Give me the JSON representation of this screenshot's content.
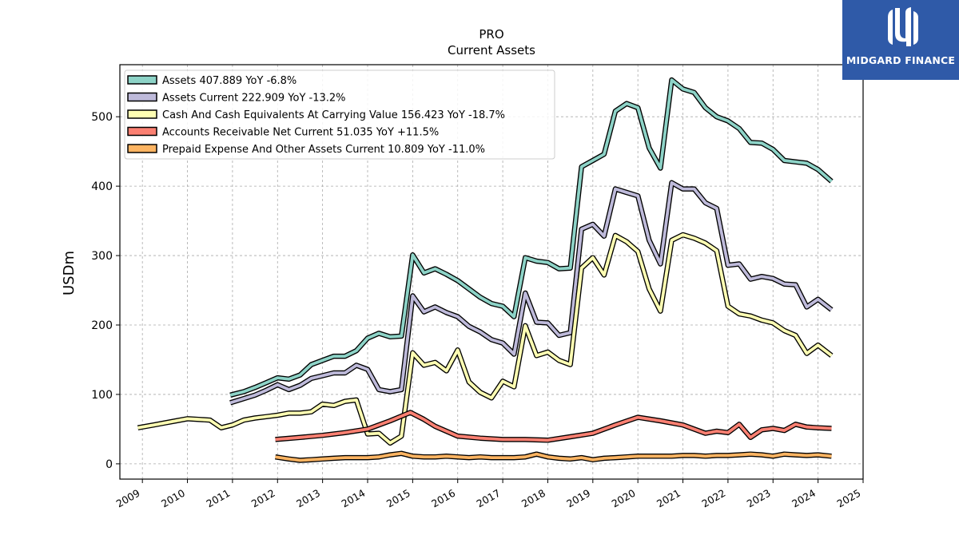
{
  "brand": {
    "name": "MIDGARD FINANCE",
    "background": "#2f5aa8"
  },
  "chart_data": {
    "type": "line",
    "title": "PRO",
    "subtitle": "Current  Assets",
    "xlabel": "",
    "ylabel": "USDm",
    "xlim": [
      2008.5,
      2025.0
    ],
    "ylim": [
      -22,
      575
    ],
    "x_ticks": [
      "2009",
      "2010",
      "2011",
      "2012",
      "2013",
      "2014",
      "2015",
      "2016",
      "2017",
      "2018",
      "2019",
      "2020",
      "2021",
      "2022",
      "2023",
      "2024",
      "2025"
    ],
    "y_ticks": [
      0,
      100,
      200,
      300,
      400,
      500
    ],
    "grid": true,
    "legend_position": "top-left",
    "series": [
      {
        "name": "Assets  407.889 YoY -6.8%",
        "color": "#8dd3c7",
        "points": [
          [
            2010.95,
            99
          ],
          [
            2011.25,
            104
          ],
          [
            2011.5,
            110
          ],
          [
            2011.75,
            117
          ],
          [
            2012.0,
            124
          ],
          [
            2012.25,
            122
          ],
          [
            2012.5,
            128
          ],
          [
            2012.75,
            143
          ],
          [
            2013.0,
            149
          ],
          [
            2013.25,
            155
          ],
          [
            2013.5,
            155
          ],
          [
            2013.75,
            163
          ],
          [
            2014.0,
            181
          ],
          [
            2014.25,
            188
          ],
          [
            2014.5,
            183
          ],
          [
            2014.75,
            184
          ],
          [
            2015.0,
            301
          ],
          [
            2015.25,
            275
          ],
          [
            2015.5,
            281
          ],
          [
            2015.75,
            273
          ],
          [
            2016.0,
            264
          ],
          [
            2016.25,
            252
          ],
          [
            2016.5,
            240
          ],
          [
            2016.75,
            231
          ],
          [
            2017.0,
            227
          ],
          [
            2017.25,
            212
          ],
          [
            2017.5,
            297
          ],
          [
            2017.75,
            292
          ],
          [
            2018.0,
            290
          ],
          [
            2018.25,
            281
          ],
          [
            2018.5,
            282
          ],
          [
            2018.75,
            428
          ],
          [
            2019.0,
            437
          ],
          [
            2019.25,
            446
          ],
          [
            2019.5,
            508
          ],
          [
            2019.75,
            519
          ],
          [
            2020.0,
            513
          ],
          [
            2020.25,
            455
          ],
          [
            2020.5,
            426
          ],
          [
            2020.75,
            553
          ],
          [
            2021.0,
            540
          ],
          [
            2021.25,
            535
          ],
          [
            2021.5,
            513
          ],
          [
            2021.75,
            500
          ],
          [
            2022.0,
            494
          ],
          [
            2022.25,
            483
          ],
          [
            2022.5,
            463
          ],
          [
            2022.75,
            462
          ],
          [
            2023.0,
            453
          ],
          [
            2023.25,
            437
          ],
          [
            2023.5,
            435
          ],
          [
            2023.75,
            433
          ],
          [
            2024.0,
            424
          ],
          [
            2024.3,
            407
          ]
        ]
      },
      {
        "name": "Assets Current  222.909 YoY -13.2%",
        "color": "#bebada",
        "points": [
          [
            2010.95,
            88
          ],
          [
            2011.25,
            94
          ],
          [
            2011.5,
            99
          ],
          [
            2011.75,
            106
          ],
          [
            2012.0,
            114
          ],
          [
            2012.25,
            107
          ],
          [
            2012.5,
            113
          ],
          [
            2012.75,
            123
          ],
          [
            2013.0,
            127
          ],
          [
            2013.25,
            131
          ],
          [
            2013.5,
            131
          ],
          [
            2013.75,
            142
          ],
          [
            2014.0,
            136
          ],
          [
            2014.25,
            107
          ],
          [
            2014.5,
            104
          ],
          [
            2014.75,
            107
          ],
          [
            2015.0,
            242
          ],
          [
            2015.25,
            219
          ],
          [
            2015.5,
            226
          ],
          [
            2015.75,
            218
          ],
          [
            2016.0,
            212
          ],
          [
            2016.25,
            198
          ],
          [
            2016.5,
            190
          ],
          [
            2016.75,
            179
          ],
          [
            2017.0,
            174
          ],
          [
            2017.25,
            158
          ],
          [
            2017.5,
            246
          ],
          [
            2017.75,
            204
          ],
          [
            2018.0,
            203
          ],
          [
            2018.25,
            185
          ],
          [
            2018.5,
            189
          ],
          [
            2018.75,
            338
          ],
          [
            2019.0,
            345
          ],
          [
            2019.25,
            328
          ],
          [
            2019.5,
            396
          ],
          [
            2019.75,
            391
          ],
          [
            2020.0,
            386
          ],
          [
            2020.25,
            322
          ],
          [
            2020.5,
            288
          ],
          [
            2020.75,
            405
          ],
          [
            2021.0,
            396
          ],
          [
            2021.25,
            396
          ],
          [
            2021.5,
            376
          ],
          [
            2021.75,
            368
          ],
          [
            2022.0,
            286
          ],
          [
            2022.25,
            288
          ],
          [
            2022.5,
            266
          ],
          [
            2022.75,
            270
          ],
          [
            2023.0,
            267
          ],
          [
            2023.25,
            259
          ],
          [
            2023.5,
            258
          ],
          [
            2023.75,
            226
          ],
          [
            2024.0,
            237
          ],
          [
            2024.3,
            222
          ]
        ]
      },
      {
        "name": "Cash And Cash Equivalents At Carrying Value  156.423 YoY -18.7%",
        "color": "#ffffb3",
        "points": [
          [
            2008.9,
            52
          ],
          [
            2009.25,
            56
          ],
          [
            2009.5,
            59
          ],
          [
            2009.75,
            62
          ],
          [
            2010.0,
            65
          ],
          [
            2010.25,
            64
          ],
          [
            2010.5,
            63
          ],
          [
            2010.75,
            52
          ],
          [
            2011.0,
            56
          ],
          [
            2011.25,
            63
          ],
          [
            2011.5,
            66
          ],
          [
            2011.75,
            68
          ],
          [
            2012.0,
            70
          ],
          [
            2012.25,
            73
          ],
          [
            2012.5,
            73
          ],
          [
            2012.75,
            75
          ],
          [
            2013.0,
            86
          ],
          [
            2013.25,
            84
          ],
          [
            2013.5,
            90
          ],
          [
            2013.75,
            92
          ],
          [
            2014.0,
            43
          ],
          [
            2014.25,
            44
          ],
          [
            2014.5,
            30
          ],
          [
            2014.75,
            40
          ],
          [
            2015.0,
            160
          ],
          [
            2015.25,
            142
          ],
          [
            2015.5,
            146
          ],
          [
            2015.75,
            134
          ],
          [
            2016.0,
            164
          ],
          [
            2016.25,
            118
          ],
          [
            2016.5,
            103
          ],
          [
            2016.75,
            95
          ],
          [
            2017.0,
            119
          ],
          [
            2017.25,
            111
          ],
          [
            2017.5,
            199
          ],
          [
            2017.75,
            156
          ],
          [
            2018.0,
            161
          ],
          [
            2018.25,
            149
          ],
          [
            2018.5,
            143
          ],
          [
            2018.75,
            282
          ],
          [
            2019.0,
            297
          ],
          [
            2019.25,
            272
          ],
          [
            2019.5,
            329
          ],
          [
            2019.75,
            320
          ],
          [
            2020.0,
            306
          ],
          [
            2020.25,
            252
          ],
          [
            2020.5,
            220
          ],
          [
            2020.75,
            322
          ],
          [
            2021.0,
            330
          ],
          [
            2021.25,
            325
          ],
          [
            2021.5,
            318
          ],
          [
            2021.75,
            307
          ],
          [
            2022.0,
            227
          ],
          [
            2022.25,
            216
          ],
          [
            2022.5,
            213
          ],
          [
            2022.75,
            207
          ],
          [
            2023.0,
            203
          ],
          [
            2023.25,
            192
          ],
          [
            2023.5,
            185
          ],
          [
            2023.75,
            159
          ],
          [
            2024.0,
            171
          ],
          [
            2024.3,
            156
          ]
        ]
      },
      {
        "name": "Accounts Receivable Net Current  51.035 YoY +11.5%",
        "color": "#fb8072",
        "points": [
          [
            2011.95,
            35
          ],
          [
            2012.5,
            38
          ],
          [
            2013.0,
            41
          ],
          [
            2013.5,
            45
          ],
          [
            2014.0,
            50
          ],
          [
            2014.5,
            62
          ],
          [
            2014.95,
            74
          ],
          [
            2015.25,
            64
          ],
          [
            2015.5,
            54
          ],
          [
            2016.0,
            40
          ],
          [
            2016.5,
            37
          ],
          [
            2017.0,
            35
          ],
          [
            2017.5,
            35
          ],
          [
            2018.0,
            34
          ],
          [
            2018.5,
            39
          ],
          [
            2019.0,
            44
          ],
          [
            2019.5,
            56
          ],
          [
            2020.0,
            67
          ],
          [
            2020.5,
            62
          ],
          [
            2021.0,
            56
          ],
          [
            2021.5,
            44
          ],
          [
            2021.75,
            47
          ],
          [
            2022.0,
            45
          ],
          [
            2022.25,
            57
          ],
          [
            2022.5,
            38
          ],
          [
            2022.75,
            49
          ],
          [
            2023.0,
            51
          ],
          [
            2023.25,
            48
          ],
          [
            2023.5,
            57
          ],
          [
            2023.75,
            53
          ],
          [
            2024.0,
            52
          ],
          [
            2024.3,
            51
          ]
        ]
      },
      {
        "name": "Prepaid Expense And Other Assets Current  10.809 YoY -11.0%",
        "color": "#fdb462",
        "points": [
          [
            2011.95,
            10
          ],
          [
            2012.25,
            7
          ],
          [
            2012.5,
            5
          ],
          [
            2012.75,
            6
          ],
          [
            2013.0,
            7
          ],
          [
            2013.25,
            8
          ],
          [
            2013.5,
            9
          ],
          [
            2013.75,
            9
          ],
          [
            2014.0,
            9
          ],
          [
            2014.25,
            10
          ],
          [
            2014.5,
            13
          ],
          [
            2014.75,
            15
          ],
          [
            2015.0,
            11
          ],
          [
            2015.25,
            10
          ],
          [
            2015.5,
            10
          ],
          [
            2015.75,
            11
          ],
          [
            2016.0,
            10
          ],
          [
            2016.25,
            9
          ],
          [
            2016.5,
            10
          ],
          [
            2016.75,
            9
          ],
          [
            2017.0,
            9
          ],
          [
            2017.25,
            9
          ],
          [
            2017.5,
            10
          ],
          [
            2017.75,
            14
          ],
          [
            2018.0,
            10
          ],
          [
            2018.25,
            8
          ],
          [
            2018.5,
            7
          ],
          [
            2018.75,
            9
          ],
          [
            2019.0,
            6
          ],
          [
            2019.25,
            8
          ],
          [
            2019.5,
            9
          ],
          [
            2019.75,
            10
          ],
          [
            2020.0,
            11
          ],
          [
            2020.25,
            11
          ],
          [
            2020.5,
            11
          ],
          [
            2020.75,
            11
          ],
          [
            2021.0,
            12
          ],
          [
            2021.25,
            12
          ],
          [
            2021.5,
            11
          ],
          [
            2021.75,
            12
          ],
          [
            2022.0,
            12
          ],
          [
            2022.25,
            13
          ],
          [
            2022.5,
            14
          ],
          [
            2022.75,
            13
          ],
          [
            2023.0,
            11
          ],
          [
            2023.25,
            14
          ],
          [
            2023.5,
            13
          ],
          [
            2023.75,
            12
          ],
          [
            2024.0,
            13
          ],
          [
            2024.3,
            11
          ]
        ]
      }
    ]
  }
}
